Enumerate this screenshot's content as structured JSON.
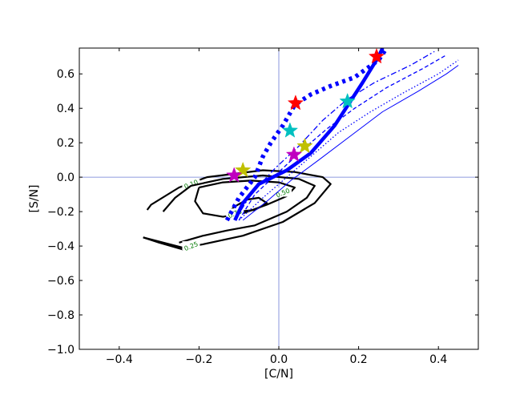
{
  "chart_data": {
    "type": "line",
    "xlabel": "[C/N]",
    "ylabel": "[S/N]",
    "xlim": [
      -0.5,
      0.5
    ],
    "ylim": [
      -1.0,
      0.75
    ],
    "xticks": [
      -0.4,
      -0.2,
      0.0,
      0.2,
      0.4
    ],
    "xtick_labels": [
      "−0.4",
      "−0.2",
      "0.0",
      "0.2",
      "0.4"
    ],
    "yticks": [
      -1.0,
      -0.8,
      -0.6,
      -0.4,
      -0.2,
      0.0,
      0.2,
      0.4,
      0.6
    ],
    "ytick_labels": [
      "−1.0",
      "−0.8",
      "−0.6",
      "−0.4",
      "−0.2",
      "0.0",
      "0.2",
      "0.4",
      "0.6"
    ],
    "grid": false,
    "reference_lines": [
      {
        "axis": "x",
        "value": 0.0,
        "color": "#6b7bd6"
      },
      {
        "axis": "y",
        "value": 0.0,
        "color": "#6b7bd6"
      }
    ],
    "contours": [
      {
        "level": "0.10",
        "segments": [
          {
            "points": [
              [
                -0.33,
                -0.19
              ],
              [
                -0.32,
                -0.16
              ],
              [
                -0.25,
                -0.06
              ],
              [
                -0.18,
                0.0
              ],
              [
                -0.04,
                0.04
              ],
              [
                0.04,
                0.03
              ],
              [
                0.11,
                0.0
              ],
              [
                0.13,
                -0.04
              ],
              [
                0.09,
                -0.15
              ],
              [
                0.01,
                -0.26
              ],
              [
                -0.09,
                -0.34
              ],
              [
                -0.19,
                -0.39
              ],
              [
                -0.24,
                -0.41
              ],
              [
                -0.34,
                -0.35
              ]
            ],
            "label_at": [
              -0.22,
              -0.04
            ]
          },
          {
            "points": [
              [
                -0.34,
                -0.35
              ],
              [
                -0.3,
                -0.38
              ],
              [
                -0.24,
                -0.42
              ]
            ]
          }
        ]
      },
      {
        "level": "0.25",
        "segments": [
          {
            "points": [
              [
                -0.29,
                -0.2
              ],
              [
                -0.26,
                -0.12
              ],
              [
                -0.22,
                -0.05
              ],
              [
                -0.14,
                -0.01
              ],
              [
                -0.04,
                0.01
              ],
              [
                0.05,
                -0.01
              ],
              [
                0.09,
                -0.05
              ],
              [
                0.07,
                -0.12
              ],
              [
                0.02,
                -0.2
              ],
              [
                -0.06,
                -0.28
              ],
              [
                -0.13,
                -0.31
              ],
              [
                -0.19,
                -0.34
              ],
              [
                -0.25,
                -0.38
              ]
            ],
            "label_at": [
              -0.22,
              -0.4
            ]
          }
        ]
      },
      {
        "level": "0.50",
        "segments": [
          {
            "points": [
              [
                -0.2,
                -0.06
              ],
              [
                -0.14,
                -0.03
              ],
              [
                -0.07,
                -0.02
              ],
              [
                0.0,
                -0.03
              ],
              [
                0.04,
                -0.06
              ],
              [
                0.02,
                -0.11
              ],
              [
                -0.03,
                -0.16
              ],
              [
                -0.09,
                -0.21
              ],
              [
                -0.14,
                -0.23
              ],
              [
                -0.19,
                -0.21
              ],
              [
                -0.21,
                -0.14
              ],
              [
                -0.2,
                -0.06
              ]
            ],
            "label_at": [
              0.01,
              -0.09
            ]
          }
        ]
      },
      {
        "level": "0.75",
        "segments": [
          {
            "points": [
              [
                -0.11,
                -0.17
              ],
              [
                -0.08,
                -0.13
              ],
              [
                -0.05,
                -0.12
              ],
              [
                -0.03,
                -0.15
              ],
              [
                -0.06,
                -0.19
              ],
              [
                -0.1,
                -0.2
              ],
              [
                -0.12,
                -0.19
              ],
              [
                -0.11,
                -0.17
              ]
            ],
            "label_at": [
              -0.11,
              -0.21
            ]
          }
        ]
      }
    ],
    "tracks": [
      {
        "style": "thick",
        "points": [
          [
            -0.11,
            -0.25
          ],
          [
            -0.09,
            -0.15
          ],
          [
            -0.05,
            -0.04
          ],
          [
            0.02,
            0.04
          ],
          [
            0.08,
            0.14
          ],
          [
            0.14,
            0.3
          ],
          [
            0.21,
            0.55
          ],
          [
            0.25,
            0.7
          ],
          [
            0.26,
            0.75
          ]
        ]
      },
      {
        "style": "dotted-thick",
        "points": [
          [
            -0.13,
            -0.25
          ],
          [
            -0.1,
            -0.12
          ],
          [
            -0.06,
            0.0
          ],
          [
            -0.04,
            0.12
          ],
          [
            -0.02,
            0.2
          ],
          [
            0.01,
            0.3
          ],
          [
            0.04,
            0.42
          ],
          [
            0.08,
            0.48
          ],
          [
            0.13,
            0.53
          ],
          [
            0.19,
            0.58
          ],
          [
            0.25,
            0.68
          ],
          [
            0.27,
            0.75
          ]
        ]
      },
      {
        "style": "dashdot",
        "points": [
          [
            -0.11,
            -0.25
          ],
          [
            -0.07,
            -0.1
          ],
          [
            -0.01,
            0.05
          ],
          [
            0.05,
            0.18
          ],
          [
            0.11,
            0.33
          ],
          [
            0.17,
            0.45
          ],
          [
            0.24,
            0.55
          ],
          [
            0.33,
            0.65
          ],
          [
            0.39,
            0.73
          ]
        ]
      },
      {
        "style": "dashed",
        "points": [
          [
            -0.1,
            -0.25
          ],
          [
            -0.06,
            -0.1
          ],
          [
            0.0,
            0.03
          ],
          [
            0.06,
            0.16
          ],
          [
            0.12,
            0.28
          ],
          [
            0.19,
            0.4
          ],
          [
            0.27,
            0.52
          ],
          [
            0.36,
            0.63
          ],
          [
            0.42,
            0.71
          ]
        ]
      },
      {
        "style": "dotted",
        "points": [
          [
            -0.1,
            -0.25
          ],
          [
            -0.04,
            -0.12
          ],
          [
            0.02,
            0.0
          ],
          [
            0.08,
            0.12
          ],
          [
            0.15,
            0.26
          ],
          [
            0.23,
            0.38
          ],
          [
            0.32,
            0.5
          ],
          [
            0.4,
            0.6
          ],
          [
            0.45,
            0.68
          ]
        ]
      },
      {
        "style": "thin",
        "points": [
          [
            -0.09,
            -0.25
          ],
          [
            -0.03,
            -0.14
          ],
          [
            0.03,
            -0.02
          ],
          [
            0.1,
            0.1
          ],
          [
            0.18,
            0.24
          ],
          [
            0.26,
            0.38
          ],
          [
            0.35,
            0.5
          ],
          [
            0.42,
            0.6
          ],
          [
            0.45,
            0.65
          ]
        ]
      }
    ],
    "stars": [
      {
        "x": 0.245,
        "y": 0.7,
        "color": "#ff0000"
      },
      {
        "x": 0.042,
        "y": 0.43,
        "color": "#ff0000"
      },
      {
        "x": 0.172,
        "y": 0.44,
        "color": "#00c0c0"
      },
      {
        "x": 0.028,
        "y": 0.27,
        "color": "#00c0c0"
      },
      {
        "x": 0.065,
        "y": 0.18,
        "color": "#c0c000"
      },
      {
        "x": -0.09,
        "y": 0.04,
        "color": "#c0c000"
      },
      {
        "x": 0.038,
        "y": 0.13,
        "color": "#c000c0"
      },
      {
        "x": -0.112,
        "y": 0.01,
        "color": "#c000c0"
      }
    ],
    "colors": {
      "track": "#0000ff",
      "contour": "#000000",
      "contour_label": "#007a00",
      "reference": "#6b7bd6",
      "axes": "#000000"
    }
  }
}
